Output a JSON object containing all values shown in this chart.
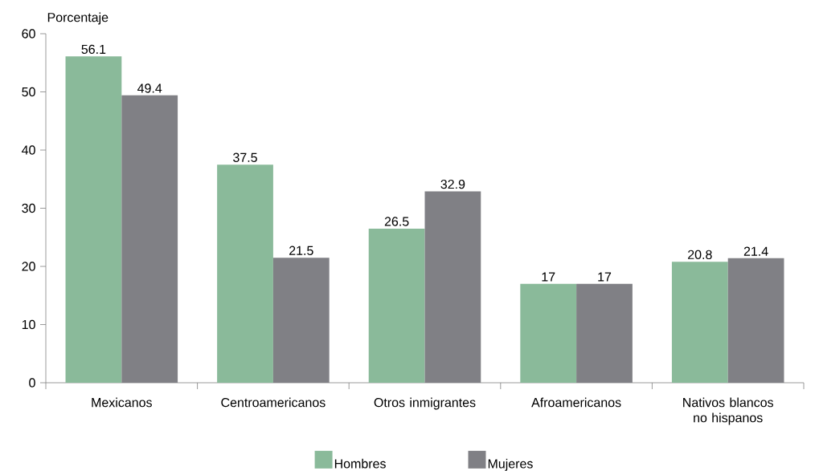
{
  "chart_data": {
    "type": "bar",
    "ylabel": "Porcentaje",
    "categories": [
      "Mexicanos",
      "Centroamericanos",
      "Otros inmigrantes",
      "Afroamericanos",
      "Nativos blancos no hispanos"
    ],
    "series": [
      {
        "name": "Hombres",
        "color": "#8aba9a",
        "values": [
          56.1,
          37.5,
          26.5,
          17,
          20.8
        ]
      },
      {
        "name": "Mujeres",
        "color": "#808085",
        "values": [
          49.4,
          21.5,
          32.9,
          17,
          21.4
        ]
      }
    ],
    "ylim": [
      0,
      60
    ],
    "yticks": [
      0,
      10,
      20,
      30,
      40,
      50,
      60
    ],
    "data_labels": true,
    "legend": "bottom",
    "grid": false
  }
}
